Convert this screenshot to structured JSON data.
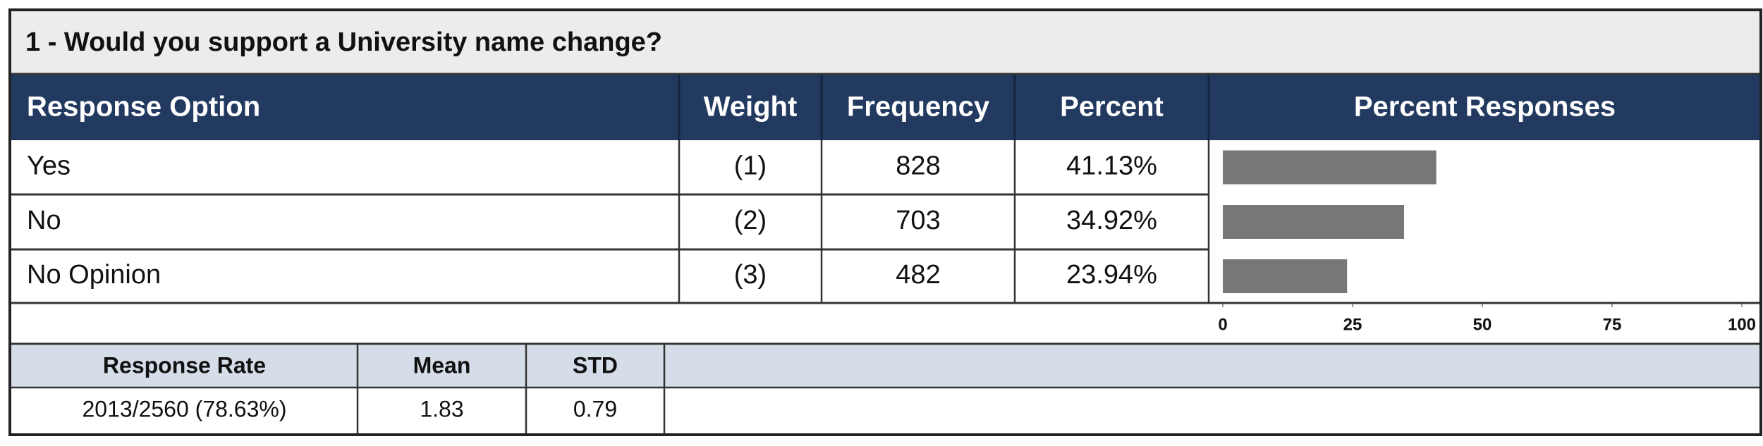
{
  "question": "1 - Would you support a University name change?",
  "table": {
    "header": [
      "Response Option",
      "Weight",
      "Frequency",
      "Percent",
      "Percent Responses"
    ],
    "rows": [
      {
        "option": "Yes",
        "weight": "(1)",
        "frequency": 828,
        "percent": {
          "value": 41.13,
          "label": "41.13%"
        }
      },
      {
        "option": "No",
        "weight": "(2)",
        "frequency": 703,
        "percent": {
          "value": 34.92,
          "label": "34.92%"
        }
      },
      {
        "option": "No Opinion",
        "weight": "(3)",
        "frequency": 482,
        "percent": {
          "value": 23.94,
          "label": "23.94%"
        }
      }
    ]
  },
  "chart": {
    "xlim": [
      0,
      100
    ],
    "xticks": [
      0,
      25,
      50,
      75,
      100
    ],
    "color": "#777777"
  },
  "summary": {
    "header": [
      "Response Rate",
      "Mean",
      "STD"
    ],
    "values": [
      "2013/2560 (78.63%)",
      1.83,
      0.79
    ]
  }
}
